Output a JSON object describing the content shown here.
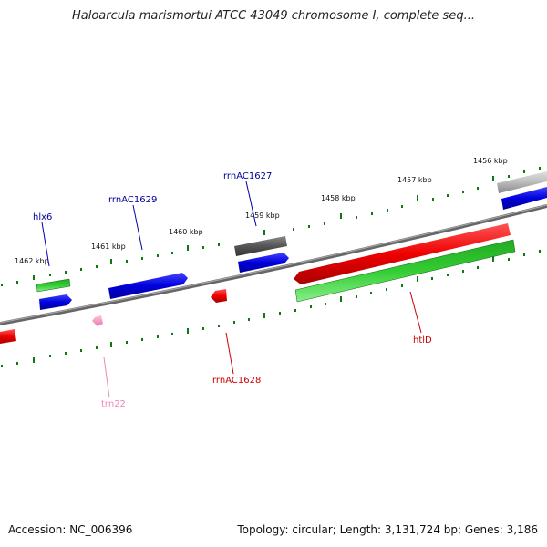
{
  "title": "Haloarcula marismortui ATCC 43049 chromosome I, complete seq...",
  "footer": {
    "accession": "Accession: NC_006396",
    "stats": "Topology: circular; Length: 3,131,724 bp; Genes: 3,186"
  },
  "scale_labels": [
    "1456 kbp",
    "1457 kbp",
    "1458 kbp",
    "1459 kbp",
    "1460 kbp",
    "1461 kbp",
    "1462 kbp"
  ],
  "gene_labels": [
    "hlx6",
    "rrnAC1629",
    "rrnAC1627",
    "trn22",
    "rrnAC1628",
    "htlD"
  ],
  "colors": {
    "forward_cds": "#0000dd",
    "reverse_cds": "#ee0000",
    "gene": "#22bb22",
    "trna": "#ff99cc",
    "other": "#555555",
    "backbone": "#777777",
    "tick": "#117711",
    "forward_label": "#000099",
    "reverse_label": "#cc0000",
    "trna_label": "#ee88bb"
  }
}
